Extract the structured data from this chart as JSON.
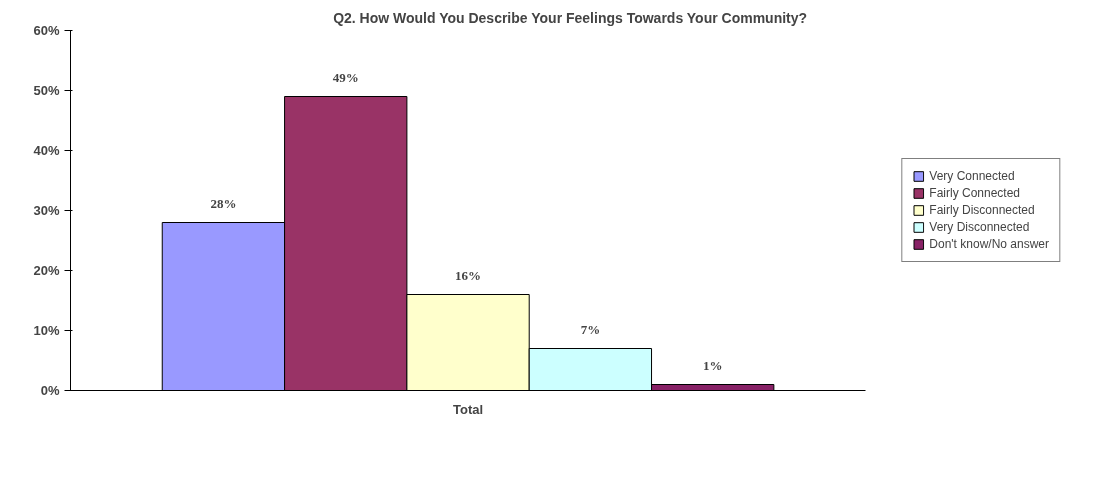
{
  "chart_data": {
    "type": "bar",
    "title": "Q2. How Would You Describe Your Feelings Towards Your Community?",
    "categories": [
      "Total"
    ],
    "series": [
      {
        "name": "Very Connected",
        "color": "#9999ff",
        "values": [
          28
        ],
        "value_labels": [
          "28%"
        ]
      },
      {
        "name": "Fairly Connected",
        "color": "#993366",
        "values": [
          49
        ],
        "value_labels": [
          "49%"
        ]
      },
      {
        "name": "Fairly Disconnected",
        "color": "#ffffcc",
        "values": [
          16
        ],
        "value_labels": [
          "16%"
        ]
      },
      {
        "name": "Very Disconnected",
        "color": "#ccffff",
        "values": [
          7
        ],
        "value_labels": [
          "7%"
        ]
      },
      {
        "name": "Don't know/No answer",
        "color": "#882266",
        "values": [
          1
        ],
        "value_labels": [
          "1%"
        ]
      }
    ],
    "ylim": [
      0,
      60
    ],
    "yticks": [
      {
        "value": 0,
        "label": "0%"
      },
      {
        "value": 10,
        "label": "10%"
      },
      {
        "value": 20,
        "label": "20%"
      },
      {
        "value": 30,
        "label": "30%"
      },
      {
        "value": 40,
        "label": "40%"
      },
      {
        "value": 50,
        "label": "50%"
      },
      {
        "value": 60,
        "label": "60%"
      }
    ],
    "grid": false,
    "legend": "right"
  }
}
